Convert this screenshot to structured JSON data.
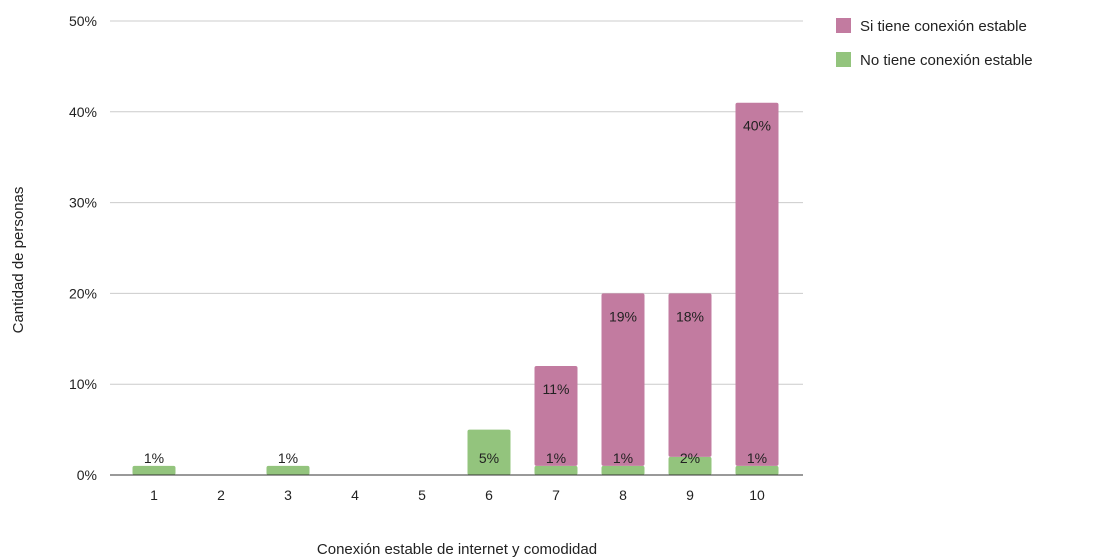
{
  "chart_data": {
    "type": "bar",
    "stacked": true,
    "categories": [
      "1",
      "2",
      "3",
      "4",
      "5",
      "6",
      "7",
      "8",
      "9",
      "10"
    ],
    "series": [
      {
        "name": "No tiene conexión estable",
        "color": "#93c47d",
        "values": [
          1,
          0,
          1,
          0,
          0,
          5,
          1,
          1,
          2,
          1
        ],
        "labels": [
          "1%",
          "",
          "1%",
          "",
          "",
          "5%",
          "1%",
          "1%",
          "2%",
          "1%"
        ]
      },
      {
        "name": "Si tiene conexión estable",
        "color": "#c27ba0",
        "values": [
          0,
          0,
          0,
          0,
          0,
          0,
          11,
          19,
          18,
          40
        ],
        "labels": [
          "",
          "",
          "",
          "",
          "",
          "",
          "11%",
          "19%",
          "18%",
          "40%"
        ]
      }
    ],
    "xlabel": "Conexión estable de internet y comodidad",
    "ylabel": "Cantidad de personas",
    "ylim": [
      0,
      50
    ],
    "yticks": [
      "0%",
      "10%",
      "20%",
      "30%",
      "40%",
      "50%"
    ],
    "grid": true,
    "legend_position": "top-right"
  }
}
